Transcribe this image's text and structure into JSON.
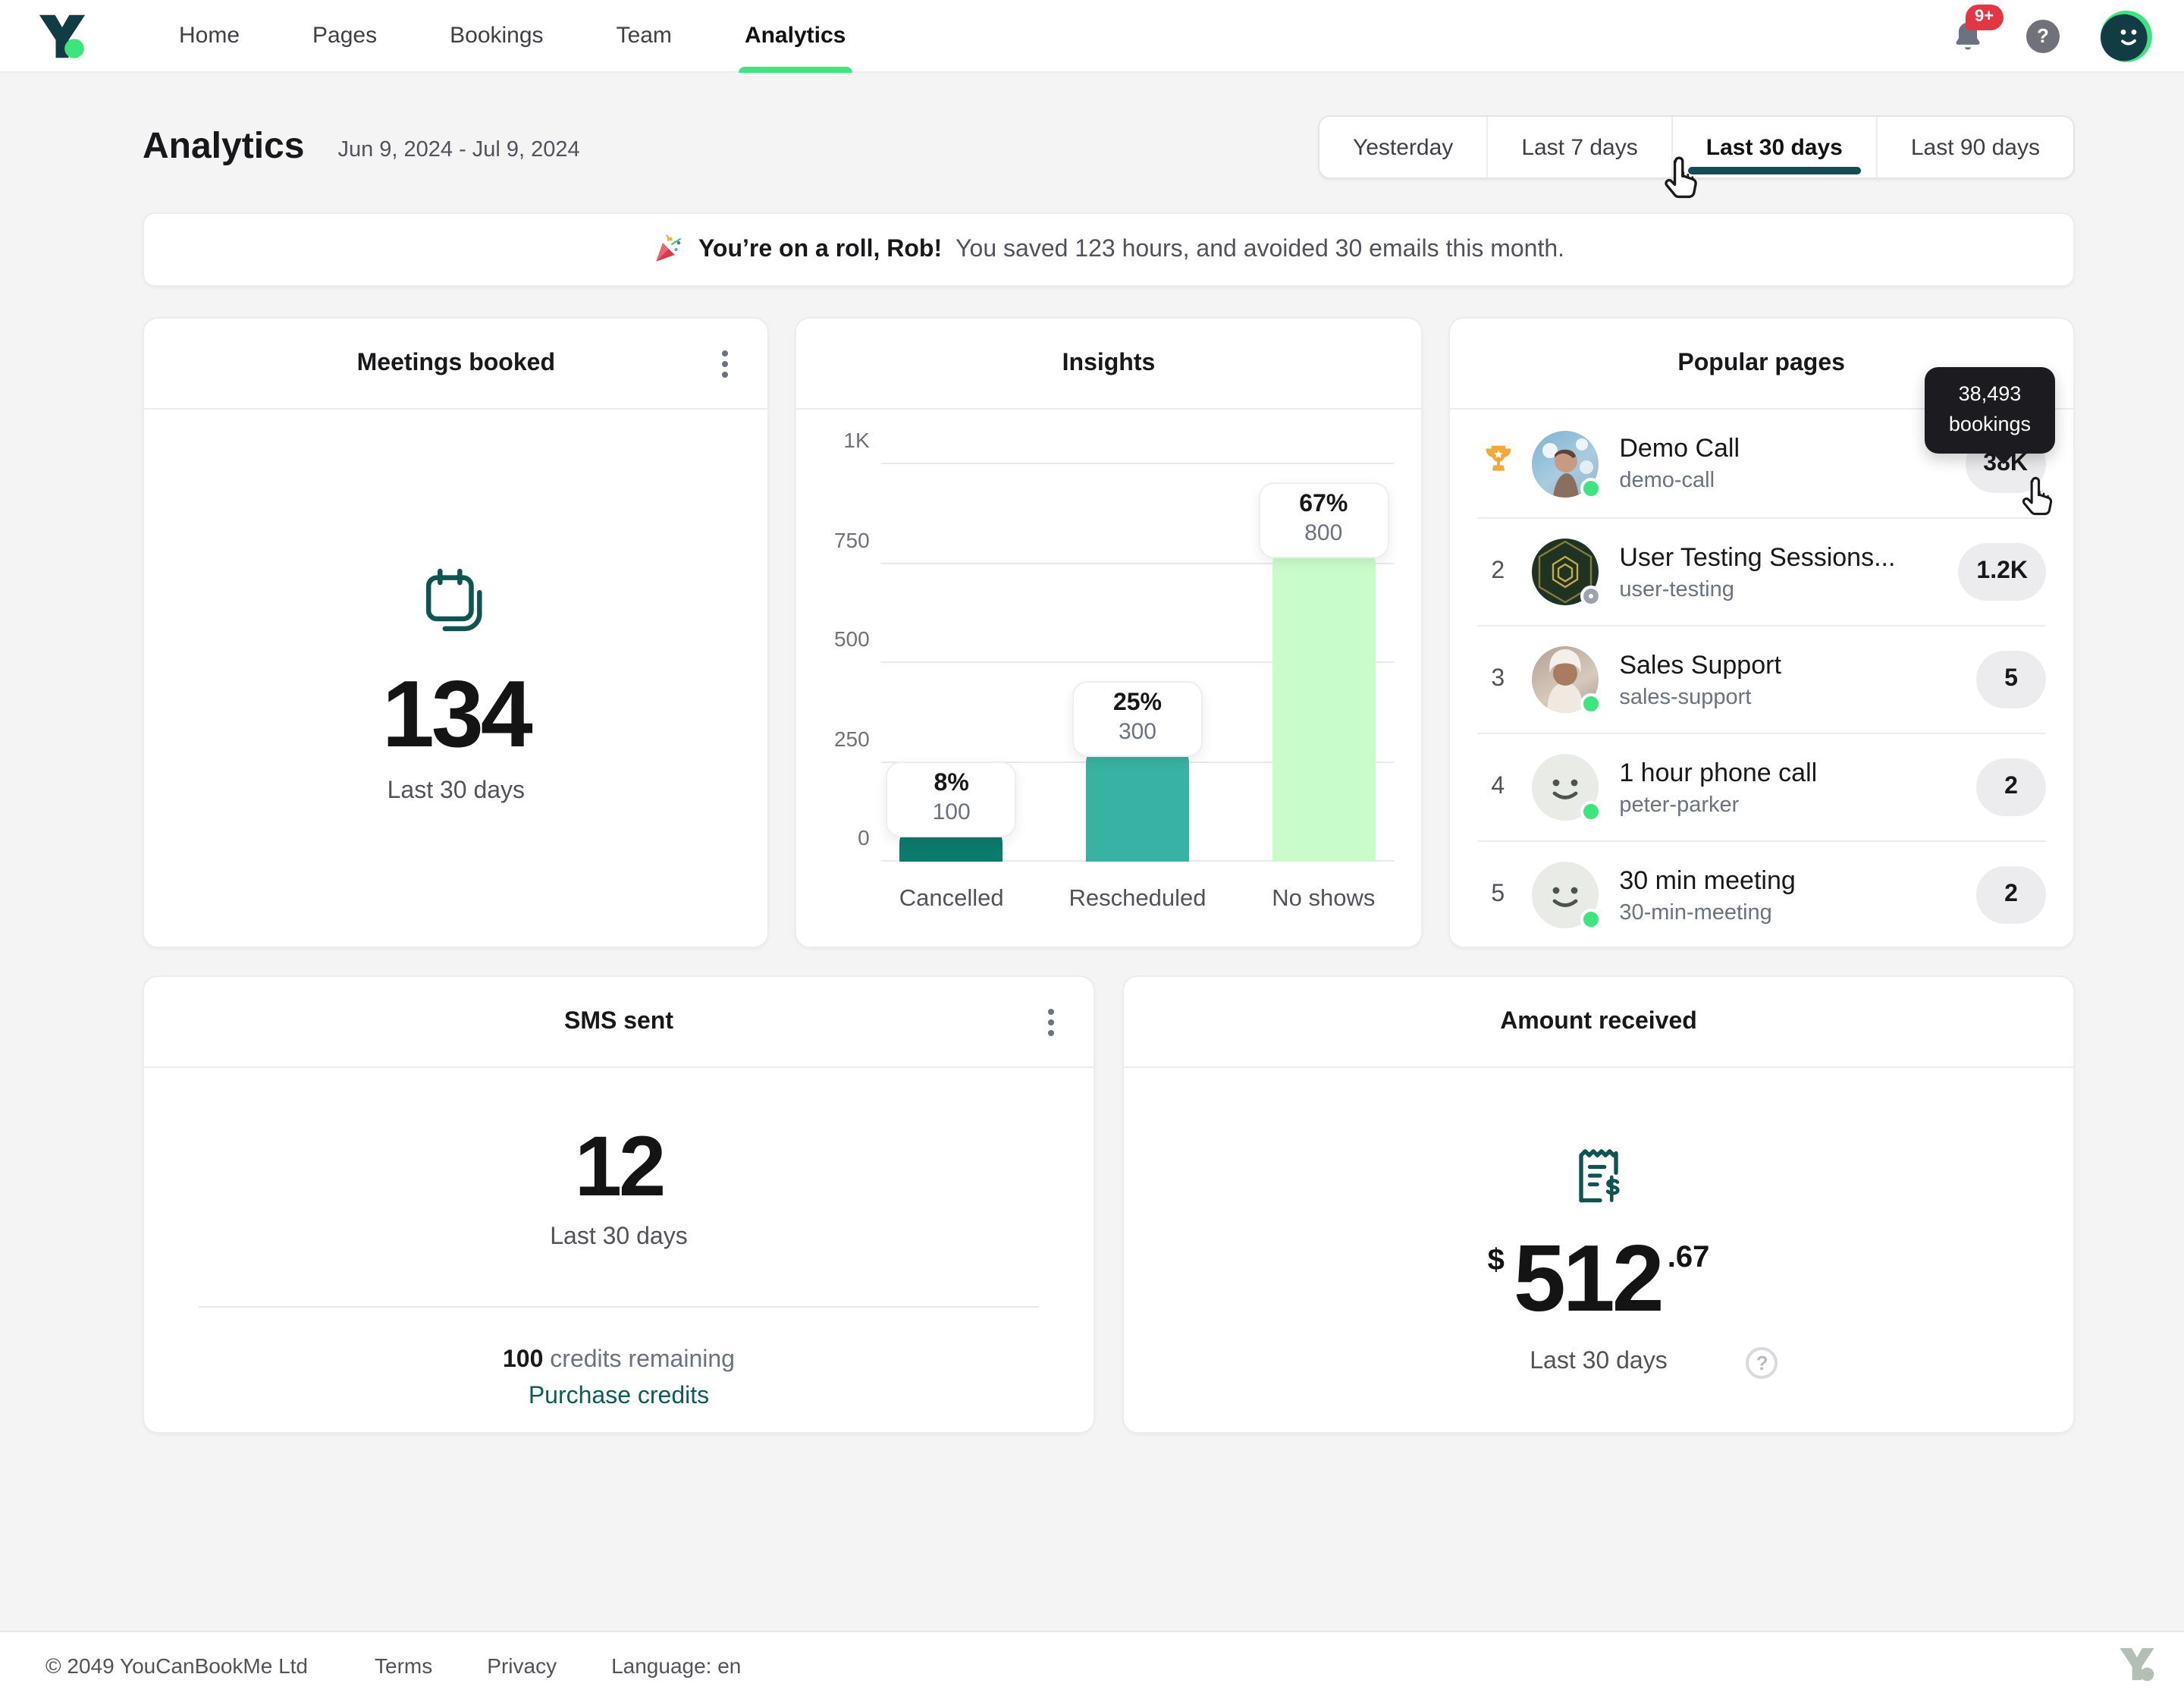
{
  "brand": {
    "colors": {
      "teal_dark": "#123c44",
      "green": "#3ee57f",
      "link_teal": "#0d5c57"
    }
  },
  "nav": {
    "items": [
      {
        "label": "Home"
      },
      {
        "label": "Pages"
      },
      {
        "label": "Bookings"
      },
      {
        "label": "Team"
      },
      {
        "label": "Analytics"
      }
    ],
    "active_item": "Analytics",
    "notifications_badge": "9+",
    "help_glyph": "?"
  },
  "header": {
    "title": "Analytics",
    "date_range": "Jun 9, 2024 - Jul 9, 2024",
    "filters": [
      {
        "label": "Yesterday"
      },
      {
        "label": "Last 7 days"
      },
      {
        "label": "Last 30 days"
      },
      {
        "label": "Last 90 days"
      }
    ],
    "active_filter": "Last 30 days"
  },
  "banner": {
    "bold": "You’re on a roll, Rob!",
    "text": "You saved 123 hours, and avoided 30 emails this month."
  },
  "meetings": {
    "title": "Meetings booked",
    "value": "134",
    "period": "Last 30 days"
  },
  "insights": {
    "title": "Insights"
  },
  "chart_data": {
    "type": "bar",
    "title": "Insights",
    "categories": [
      "Cancelled",
      "Rescheduled",
      "No shows"
    ],
    "values": [
      100,
      300,
      800
    ],
    "percent_labels": [
      "8%",
      "25%",
      "67%"
    ],
    "value_labels": [
      "100",
      "300",
      "800"
    ],
    "yticks": [
      "1K",
      "750",
      "500",
      "250",
      "0"
    ],
    "ylim": [
      0,
      1000
    ],
    "grid": true,
    "legend": false,
    "colors": [
      "#0c7a6c",
      "#38b2a2",
      "#c9fccb"
    ]
  },
  "popular": {
    "title": "Popular pages",
    "tooltip_line1": "38,493",
    "tooltip_line2": "bookings",
    "rows": [
      {
        "rank_icon": "trophy",
        "name": "Demo Call",
        "slug": "demo-call",
        "count": "38K",
        "status": "green"
      },
      {
        "rank": "2",
        "name": "User Testing Sessions...",
        "slug": "user-testing",
        "count": "1.2K",
        "status": "gray-ring"
      },
      {
        "rank": "3",
        "name": "Sales Support",
        "slug": "sales-support",
        "count": "5",
        "status": "green"
      },
      {
        "rank": "4",
        "name": "1 hour phone call",
        "slug": "peter-parker",
        "count": "2",
        "status": "green"
      },
      {
        "rank": "5",
        "name": "30 min meeting",
        "slug": "30-min-meeting",
        "count": "2",
        "status": "green"
      }
    ]
  },
  "sms": {
    "title": "SMS sent",
    "value": "12",
    "period": "Last 30 days",
    "credits_value": "100",
    "credits_text": " credits remaining",
    "purchase_link": "Purchase credits"
  },
  "amount": {
    "title": "Amount received",
    "currency": "$",
    "major": "512",
    "minor": ".67",
    "period": "Last 30 days"
  },
  "footer": {
    "copyright": "© 2049 YouCanBookMe Ltd",
    "terms": "Terms",
    "privacy": "Privacy",
    "language": "Language: en"
  }
}
